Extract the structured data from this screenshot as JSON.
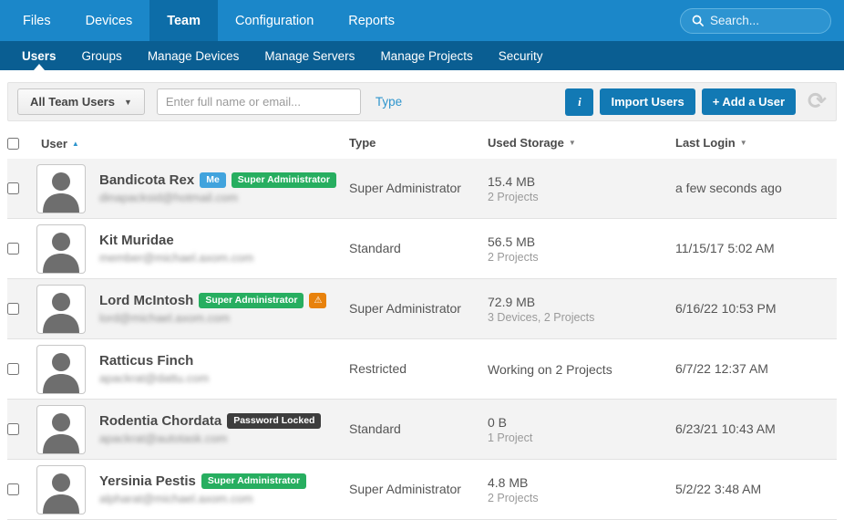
{
  "topnav": {
    "items": [
      {
        "label": "Files",
        "active": false
      },
      {
        "label": "Devices",
        "active": false
      },
      {
        "label": "Team",
        "active": true
      },
      {
        "label": "Configuration",
        "active": false
      },
      {
        "label": "Reports",
        "active": false
      }
    ],
    "search_placeholder": "Search..."
  },
  "subnav": {
    "items": [
      {
        "label": "Users",
        "active": true
      },
      {
        "label": "Groups",
        "active": false
      },
      {
        "label": "Manage Devices",
        "active": false
      },
      {
        "label": "Manage Servers",
        "active": false
      },
      {
        "label": "Manage Projects",
        "active": false
      },
      {
        "label": "Security",
        "active": false
      }
    ]
  },
  "toolbar": {
    "filter_label": "All Team Users",
    "filter_caret": "▼",
    "name_placeholder": "Enter full name or email...",
    "type_link": "Type",
    "info_label": "i",
    "import_label": "Import Users",
    "add_label": "+ Add a User",
    "refresh_glyph": "⟳"
  },
  "table": {
    "headers": {
      "user": "User",
      "user_sort": "▲",
      "type": "Type",
      "storage": "Used Storage",
      "storage_sort": "▼",
      "login": "Last Login",
      "login_sort": "▼"
    },
    "rows": [
      {
        "name": "Bandicota Rex",
        "email": "dinapacksid@hotmail.com",
        "badges": [
          {
            "kind": "me",
            "label": "Me"
          },
          {
            "kind": "super-admin",
            "label": "Super Administrator"
          }
        ],
        "type": "Super Administrator",
        "storage_main": "15.4 MB",
        "storage_sub": "2 Projects",
        "last_login": "a few seconds ago"
      },
      {
        "name": "Kit Muridae",
        "email": "member@michael.axom.com",
        "badges": [],
        "type": "Standard",
        "storage_main": "56.5 MB",
        "storage_sub": "2 Projects",
        "last_login": "11/15/17 5:02 AM"
      },
      {
        "name": "Lord McIntosh",
        "email": "lord@michael.axom.com",
        "badges": [
          {
            "kind": "super-admin",
            "label": "Super Administrator"
          },
          {
            "kind": "warning",
            "label": "⚠"
          }
        ],
        "type": "Super Administrator",
        "storage_main": "72.9 MB",
        "storage_sub": "3 Devices, 2 Projects",
        "last_login": "6/16/22 10:53 PM"
      },
      {
        "name": "Ratticus Finch",
        "email": "apackrat@dattu.com",
        "badges": [],
        "type": "Restricted",
        "storage_main": "Working on 2 Projects",
        "storage_sub": "",
        "last_login": "6/7/22 12:37 AM"
      },
      {
        "name": "Rodentia Chordata",
        "email": "apackrat@autotask.com",
        "badges": [
          {
            "kind": "locked",
            "label": "Password Locked"
          }
        ],
        "type": "Standard",
        "storage_main": "0 B",
        "storage_sub": "1 Project",
        "last_login": "6/23/21 10:43 AM"
      },
      {
        "name": "Yersinia Pestis",
        "email": "alpharat@michael.axom.com",
        "badges": [
          {
            "kind": "super-admin",
            "label": "Super Administrator"
          }
        ],
        "type": "Super Administrator",
        "storage_main": "4.8 MB",
        "storage_sub": "2 Projects",
        "last_login": "5/2/22 3:48 AM"
      }
    ]
  },
  "colors": {
    "topnav_bg": "#1b87c9",
    "topnav_active_bg": "#0d6da8",
    "subnav_bg": "#0a5e92",
    "button_blue": "#1279b4",
    "badge_me": "#41a3dd",
    "badge_super_admin": "#27ae60",
    "badge_warning": "#e8820c",
    "badge_locked": "#3d3d3d",
    "link_blue": "#2e95cd",
    "row_stripe": "#f3f3f3"
  }
}
